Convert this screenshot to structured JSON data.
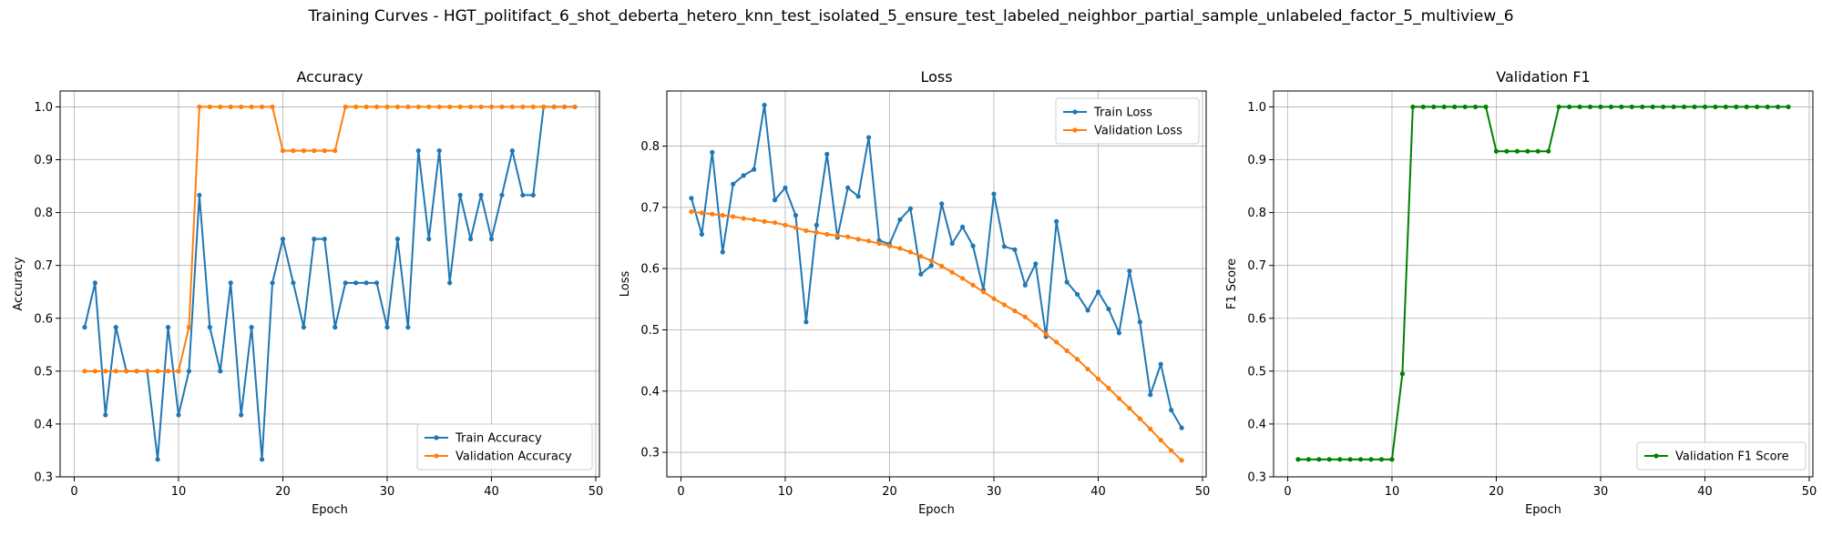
{
  "figure": {
    "suptitle": "Training Curves - HGT_politifact_6_shot_deberta_hetero_knn_test_isolated_5_ensure_test_labeled_neighbor_partial_sample_unlabeled_factor_5_multiview_6"
  },
  "chart_data": [
    {
      "type": "line",
      "title": "Accuracy",
      "xlabel": "Epoch",
      "ylabel": "Accuracy",
      "xlim": [
        -1.35,
        50.35
      ],
      "ylim": [
        0.3,
        1.03
      ],
      "xticks": [
        0,
        10,
        20,
        30,
        40,
        50
      ],
      "yticks": [
        0.3,
        0.4,
        0.5,
        0.6,
        0.7,
        0.8,
        0.9,
        1.0
      ],
      "xtick_labels": [
        "0",
        "10",
        "20",
        "30",
        "40",
        "50"
      ],
      "ytick_labels": [
        "0.3",
        "0.4",
        "0.5",
        "0.6",
        "0.7",
        "0.8",
        "0.9",
        "1.0"
      ],
      "grid": true,
      "legend_position": "lower-right",
      "series": [
        {
          "name": "Train Accuracy",
          "color": "#1f77b4",
          "values": [
            0.583,
            0.667,
            0.417,
            0.583,
            0.5,
            0.5,
            0.5,
            0.333,
            0.583,
            0.417,
            0.5,
            0.833,
            0.583,
            0.5,
            0.667,
            0.417,
            0.583,
            0.333,
            0.667,
            0.75,
            0.667,
            0.583,
            0.75,
            0.75,
            0.583,
            0.667,
            0.667,
            0.667,
            0.667,
            0.583,
            0.75,
            0.583,
            0.917,
            0.75,
            0.917,
            0.667,
            0.833,
            0.75,
            0.833,
            0.75,
            0.833,
            0.917,
            0.833,
            0.833,
            1.0,
            1.0,
            1.0,
            1.0
          ]
        },
        {
          "name": "Validation Accuracy",
          "color": "#ff7f0e",
          "values": [
            0.5,
            0.5,
            0.5,
            0.5,
            0.5,
            0.5,
            0.5,
            0.5,
            0.5,
            0.5,
            0.583,
            1.0,
            1.0,
            1.0,
            1.0,
            1.0,
            1.0,
            1.0,
            1.0,
            0.917,
            0.917,
            0.917,
            0.917,
            0.917,
            0.917,
            1.0,
            1.0,
            1.0,
            1.0,
            1.0,
            1.0,
            1.0,
            1.0,
            1.0,
            1.0,
            1.0,
            1.0,
            1.0,
            1.0,
            1.0,
            1.0,
            1.0,
            1.0,
            1.0,
            1.0,
            1.0,
            1.0,
            1.0
          ]
        }
      ]
    },
    {
      "type": "line",
      "title": "Loss",
      "xlabel": "Epoch",
      "ylabel": "Loss",
      "xlim": [
        -1.35,
        50.35
      ],
      "ylim": [
        0.26,
        0.89
      ],
      "xticks": [
        0,
        10,
        20,
        30,
        40,
        50
      ],
      "yticks": [
        0.3,
        0.4,
        0.5,
        0.6,
        0.7,
        0.8
      ],
      "xtick_labels": [
        "0",
        "10",
        "20",
        "30",
        "40",
        "50"
      ],
      "ytick_labels": [
        "0.3",
        "0.4",
        "0.5",
        "0.6",
        "0.7",
        "0.8"
      ],
      "grid": true,
      "legend_position": "upper-right",
      "series": [
        {
          "name": "Train Loss",
          "color": "#1f77b4",
          "values": [
            0.715,
            0.656,
            0.79,
            0.627,
            0.738,
            0.752,
            0.762,
            0.867,
            0.712,
            0.732,
            0.687,
            0.513,
            0.671,
            0.787,
            0.651,
            0.732,
            0.718,
            0.814,
            0.646,
            0.64,
            0.68,
            0.698,
            0.591,
            0.605,
            0.706,
            0.641,
            0.668,
            0.637,
            0.565,
            0.722,
            0.636,
            0.631,
            0.573,
            0.608,
            0.489,
            0.677,
            0.578,
            0.558,
            0.532,
            0.562,
            0.534,
            0.495,
            0.596,
            0.513,
            0.394,
            0.444,
            0.369,
            0.34
          ]
        },
        {
          "name": "Validation Loss",
          "color": "#ff7f0e",
          "values": [
            0.693,
            0.691,
            0.689,
            0.687,
            0.685,
            0.682,
            0.68,
            0.677,
            0.675,
            0.671,
            0.667,
            0.662,
            0.659,
            0.656,
            0.654,
            0.652,
            0.648,
            0.645,
            0.641,
            0.637,
            0.633,
            0.627,
            0.62,
            0.613,
            0.604,
            0.594,
            0.584,
            0.573,
            0.562,
            0.551,
            0.541,
            0.531,
            0.521,
            0.508,
            0.493,
            0.48,
            0.466,
            0.452,
            0.436,
            0.42,
            0.405,
            0.388,
            0.372,
            0.355,
            0.338,
            0.32,
            0.303,
            0.287
          ]
        }
      ]
    },
    {
      "type": "line",
      "title": "Validation F1",
      "xlabel": "Epoch",
      "ylabel": "F1 Score",
      "xlim": [
        -1.35,
        50.35
      ],
      "ylim": [
        0.3,
        1.03
      ],
      "xticks": [
        0,
        10,
        20,
        30,
        40,
        50
      ],
      "yticks": [
        0.3,
        0.4,
        0.5,
        0.6,
        0.7,
        0.8,
        0.9,
        1.0
      ],
      "xtick_labels": [
        "0",
        "10",
        "20",
        "30",
        "40",
        "50"
      ],
      "ytick_labels": [
        "0.3",
        "0.4",
        "0.5",
        "0.6",
        "0.7",
        "0.8",
        "0.9",
        "1.0"
      ],
      "grid": true,
      "legend_position": "lower-right",
      "series": [
        {
          "name": "Validation F1 Score",
          "color": "#008000",
          "values": [
            0.333,
            0.333,
            0.333,
            0.333,
            0.333,
            0.333,
            0.333,
            0.333,
            0.333,
            0.333,
            0.495,
            1.0,
            1.0,
            1.0,
            1.0,
            1.0,
            1.0,
            1.0,
            1.0,
            0.916,
            0.916,
            0.916,
            0.916,
            0.916,
            0.916,
            1.0,
            1.0,
            1.0,
            1.0,
            1.0,
            1.0,
            1.0,
            1.0,
            1.0,
            1.0,
            1.0,
            1.0,
            1.0,
            1.0,
            1.0,
            1.0,
            1.0,
            1.0,
            1.0,
            1.0,
            1.0,
            1.0,
            1.0
          ]
        }
      ]
    }
  ]
}
